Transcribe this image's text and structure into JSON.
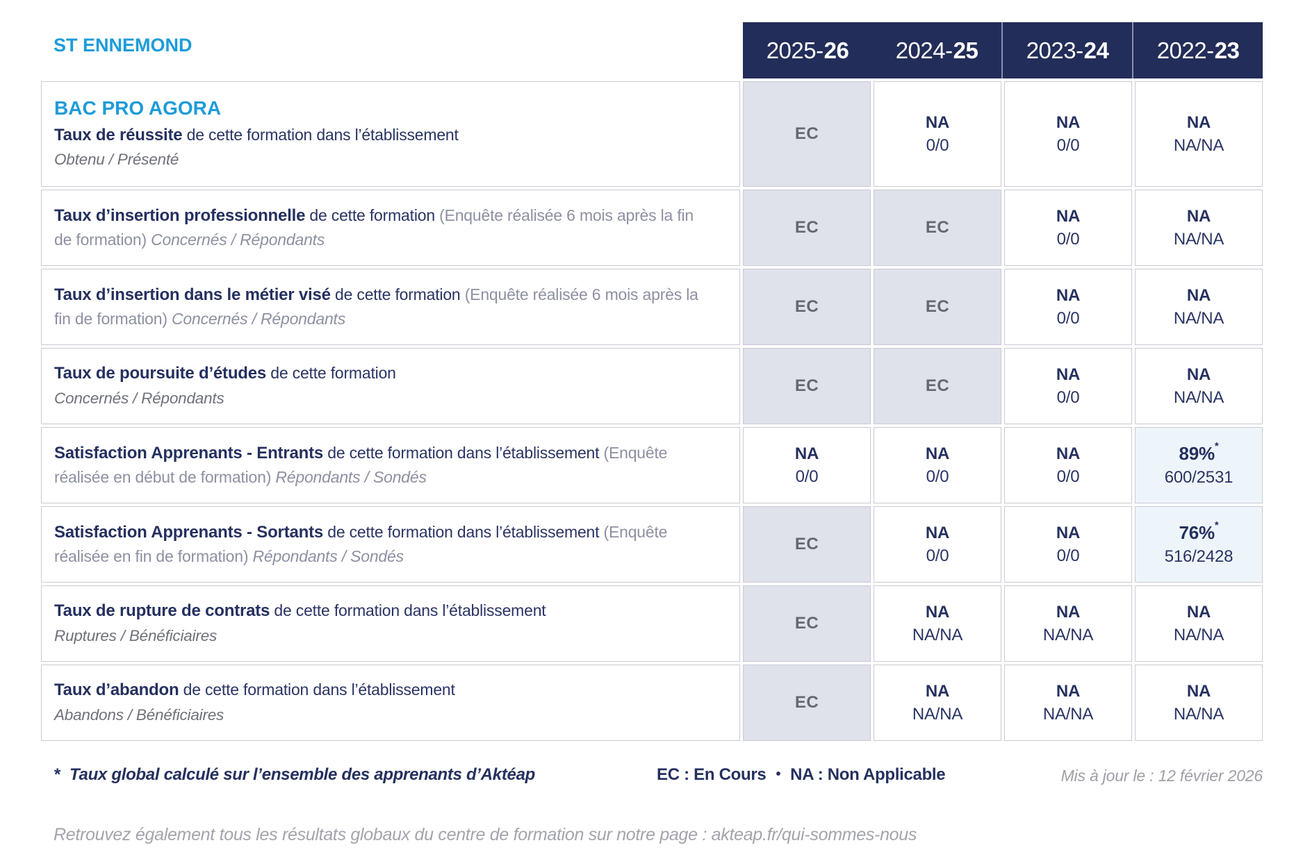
{
  "page": {
    "school_name": "ST ENNEMOND",
    "footnote_star": "*",
    "footnote": "Taux global calculé sur l’ensemble des apprenants d’Aktéap",
    "legend_ec": "EC : En Cours",
    "legend_sep": "•",
    "legend_na": "NA : Non Applicable",
    "updated": "Mis à jour le : 12 février 2026",
    "bottom_note": "Retrouvez également tous les résultats globaux du centre de formation sur notre page : akteap.fr/qui-sommes-nous"
  },
  "colors": {
    "accent_blue": "#1d9cd9",
    "navy": "#25305f",
    "header_bg": "#232d59",
    "ec_cell_bg": "#dfe1eb",
    "highlight_cell_bg": "#eef5fa"
  },
  "table": {
    "years": [
      {
        "prefix": "2025-",
        "suffix": "26"
      },
      {
        "prefix": "2024-",
        "suffix": "25"
      },
      {
        "prefix": "2023-",
        "suffix": "24"
      },
      {
        "prefix": "2022-",
        "suffix": "23"
      }
    ],
    "rows": [
      {
        "program": "BAC PRO AGORA",
        "lead": "Taux de réussite",
        "mid": " de cette formation dans l’établissement",
        "paren": "",
        "tail": "",
        "sub": "Obtenu / Présenté",
        "cells": [
          {
            "type": "EC",
            "main": "EC",
            "star": "",
            "sub": ""
          },
          {
            "type": "NA",
            "main": "NA",
            "star": "",
            "sub": "0/0"
          },
          {
            "type": "NA",
            "main": "NA",
            "star": "",
            "sub": "0/0"
          },
          {
            "type": "NA",
            "main": "NA",
            "star": "",
            "sub": "NA/NA"
          }
        ]
      },
      {
        "program": "",
        "lead": "Taux d’insertion professionnelle",
        "mid": " de cette formation ",
        "paren": "(Enquête réalisée 6 mois après la fin de formation) ",
        "tail": "Concernés / Répondants",
        "sub": "",
        "cells": [
          {
            "type": "EC",
            "main": "EC",
            "star": "",
            "sub": ""
          },
          {
            "type": "EC",
            "main": "EC",
            "star": "",
            "sub": ""
          },
          {
            "type": "NA",
            "main": "NA",
            "star": "",
            "sub": "0/0"
          },
          {
            "type": "NA",
            "main": "NA",
            "star": "",
            "sub": "NA/NA"
          }
        ]
      },
      {
        "program": "",
        "lead": "Taux d’insertion dans le métier visé",
        "mid": " de cette formation ",
        "paren": "(Enquête réalisée 6 mois après la fin de formation) ",
        "tail": "Concernés / Répondants",
        "sub": "",
        "cells": [
          {
            "type": "EC",
            "main": "EC",
            "star": "",
            "sub": ""
          },
          {
            "type": "EC",
            "main": "EC",
            "star": "",
            "sub": ""
          },
          {
            "type": "NA",
            "main": "NA",
            "star": "",
            "sub": "0/0"
          },
          {
            "type": "NA",
            "main": "NA",
            "star": "",
            "sub": "NA/NA"
          }
        ]
      },
      {
        "program": "",
        "lead": "Taux de poursuite d’études",
        "mid": " de cette formation",
        "paren": "",
        "tail": "",
        "sub": "Concernés / Répondants",
        "cells": [
          {
            "type": "EC",
            "main": "EC",
            "star": "",
            "sub": ""
          },
          {
            "type": "EC",
            "main": "EC",
            "star": "",
            "sub": ""
          },
          {
            "type": "NA",
            "main": "NA",
            "star": "",
            "sub": "0/0"
          },
          {
            "type": "NA",
            "main": "NA",
            "star": "",
            "sub": "NA/NA"
          }
        ]
      },
      {
        "program": "",
        "lead": "Satisfaction Apprenants - Entrants",
        "mid": " de cette formation dans l’établissement ",
        "paren": "(Enquête réalisée en début de formation) ",
        "tail": "Répondants / Sondés",
        "sub": "",
        "cells": [
          {
            "type": "NA",
            "main": "NA",
            "star": "",
            "sub": "0/0"
          },
          {
            "type": "NA",
            "main": "NA",
            "star": "",
            "sub": "0/0"
          },
          {
            "type": "NA",
            "main": "NA",
            "star": "",
            "sub": "0/0"
          },
          {
            "type": "PCT",
            "main": "89%",
            "star": "*",
            "sub": "600/2531"
          }
        ]
      },
      {
        "program": "",
        "lead": "Satisfaction Apprenants - Sortants",
        "mid": " de cette formation dans l’établissement ",
        "paren": "(Enquête réalisée en fin de formation) ",
        "tail": "Répondants / Sondés",
        "sub": "",
        "cells": [
          {
            "type": "EC",
            "main": "EC",
            "star": "",
            "sub": ""
          },
          {
            "type": "NA",
            "main": "NA",
            "star": "",
            "sub": "0/0"
          },
          {
            "type": "NA",
            "main": "NA",
            "star": "",
            "sub": "0/0"
          },
          {
            "type": "PCT",
            "main": "76%",
            "star": "*",
            "sub": "516/2428"
          }
        ]
      },
      {
        "program": "",
        "lead": "Taux de rupture de contrats",
        "mid": " de cette formation dans l’établissement",
        "paren": "",
        "tail": "",
        "sub": "Ruptures / Bénéficiaires",
        "cells": [
          {
            "type": "EC",
            "main": "EC",
            "star": "",
            "sub": ""
          },
          {
            "type": "NA",
            "main": "NA",
            "star": "",
            "sub": "NA/NA"
          },
          {
            "type": "NA",
            "main": "NA",
            "star": "",
            "sub": "NA/NA"
          },
          {
            "type": "NA",
            "main": "NA",
            "star": "",
            "sub": "NA/NA"
          }
        ]
      },
      {
        "program": "",
        "lead": "Taux d’abandon",
        "mid": " de cette formation dans l’établissement",
        "paren": "",
        "tail": "",
        "sub": "Abandons / Bénéficiaires",
        "cells": [
          {
            "type": "EC",
            "main": "EC",
            "star": "",
            "sub": ""
          },
          {
            "type": "NA",
            "main": "NA",
            "star": "",
            "sub": "NA/NA"
          },
          {
            "type": "NA",
            "main": "NA",
            "star": "",
            "sub": "NA/NA"
          },
          {
            "type": "NA",
            "main": "NA",
            "star": "",
            "sub": "NA/NA"
          }
        ]
      }
    ]
  }
}
